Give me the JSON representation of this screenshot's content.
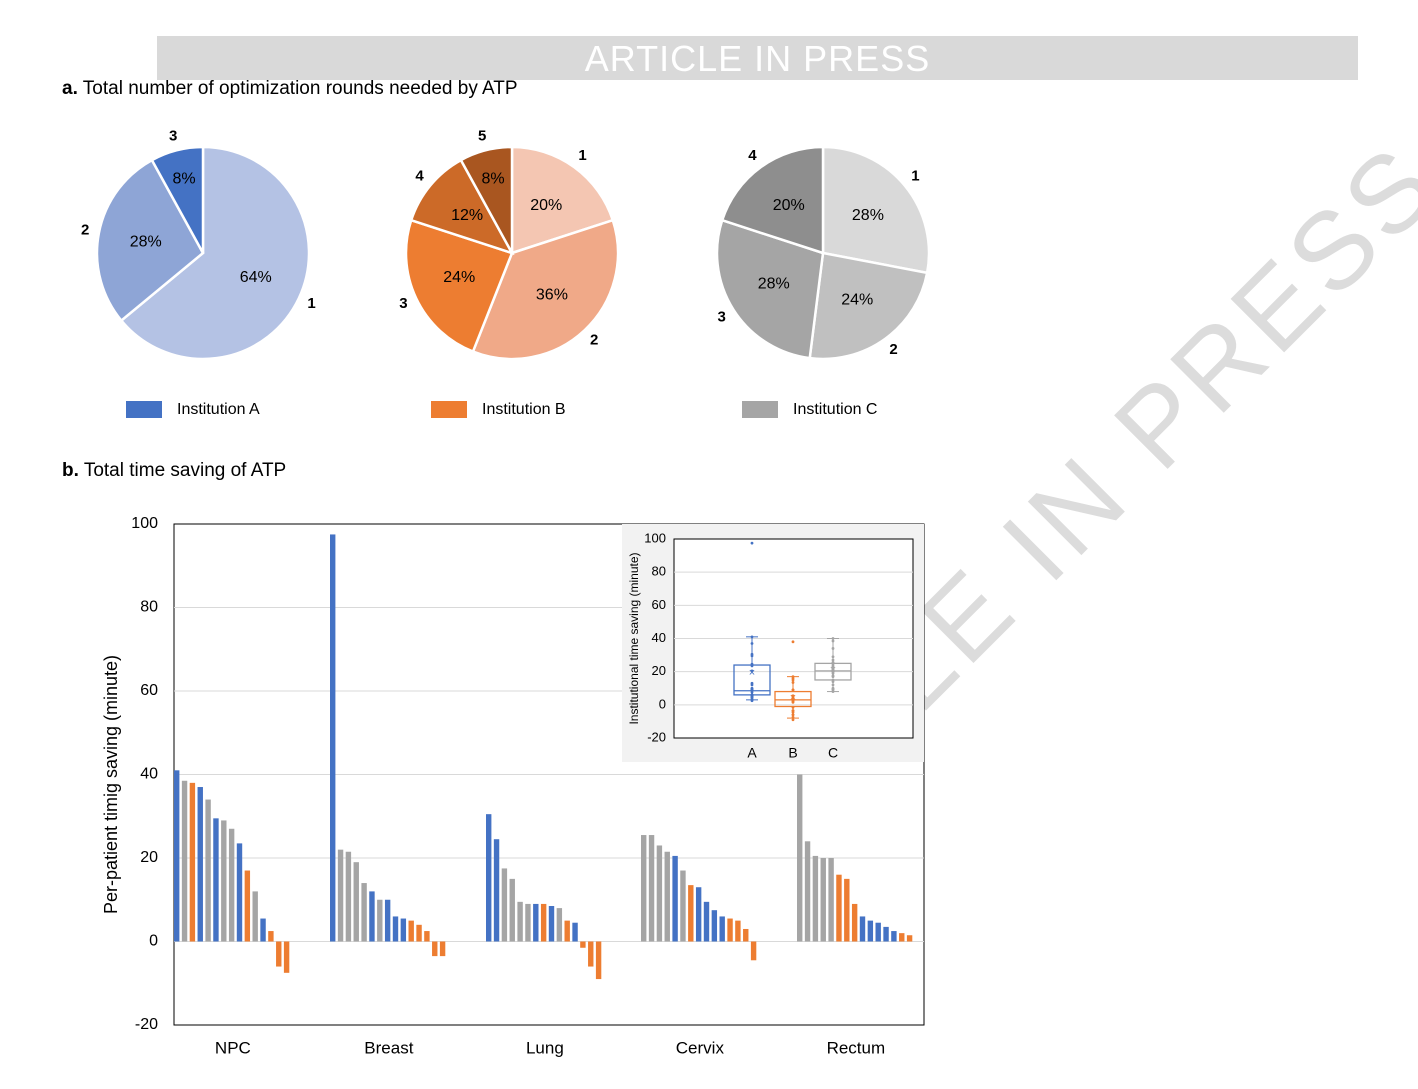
{
  "banner": "ARTICLE IN PRESS",
  "watermark": "ARTICLE IN PRESS",
  "panel_a": {
    "letter": "a.",
    "title": "Total number of optimization rounds needed by ATP"
  },
  "panel_b": {
    "letter": "b.",
    "title": "Total time saving of ATP"
  },
  "colors": {
    "institution_a": "#4472c4",
    "institution_b": "#ed7d31",
    "institution_c": "#a5a5a5",
    "grid": "#d9d9d9"
  },
  "chart_data": [
    {
      "type": "pie",
      "legend": "Institution A",
      "slices": [
        {
          "label": "1",
          "value": 64,
          "text": "64%",
          "color": "#b4c2e4"
        },
        {
          "label": "2",
          "value": 28,
          "text": "28%",
          "color": "#8ea5d6"
        },
        {
          "label": "3",
          "value": 8,
          "text": "8%",
          "color": "#4472c4"
        }
      ]
    },
    {
      "type": "pie",
      "legend": "Institution B",
      "slices": [
        {
          "label": "1",
          "value": 20,
          "text": "20%",
          "color": "#f4c6b2"
        },
        {
          "label": "2",
          "value": 36,
          "text": "36%",
          "color": "#f0a988"
        },
        {
          "label": "3",
          "value": 24,
          "text": "24%",
          "color": "#ed7d31"
        },
        {
          "label": "4",
          "value": 12,
          "text": "12%",
          "color": "#cc6a28"
        },
        {
          "label": "5",
          "value": 8,
          "text": "8%",
          "color": "#a95620"
        }
      ]
    },
    {
      "type": "pie",
      "legend": "Institution C",
      "slices": [
        {
          "label": "1",
          "value": 28,
          "text": "28%",
          "color": "#d9d9d9"
        },
        {
          "label": "2",
          "value": 24,
          "text": "24%",
          "color": "#c0c0c0"
        },
        {
          "label": "3",
          "value": 28,
          "text": "28%",
          "color": "#a5a5a5"
        },
        {
          "label": "4",
          "value": 20,
          "text": "20%",
          "color": "#8e8e8e"
        }
      ]
    },
    {
      "type": "bar",
      "ylabel": "Per-patient timig saving (minute)",
      "ylim": [
        -20,
        100
      ],
      "yticks": [
        -20,
        0,
        20,
        40,
        60,
        80,
        100
      ],
      "grid": true,
      "groups": [
        {
          "name": "NPC",
          "bars": [
            {
              "inst": "A",
              "value": 41
            },
            {
              "inst": "C",
              "value": 38.5
            },
            {
              "inst": "B",
              "value": 38
            },
            {
              "inst": "A",
              "value": 37
            },
            {
              "inst": "C",
              "value": 34
            },
            {
              "inst": "A",
              "value": 29.5
            },
            {
              "inst": "C",
              "value": 29
            },
            {
              "inst": "C",
              "value": 27
            },
            {
              "inst": "A",
              "value": 23.5
            },
            {
              "inst": "B",
              "value": 17
            },
            {
              "inst": "C",
              "value": 12
            },
            {
              "inst": "A",
              "value": 5.5
            },
            {
              "inst": "B",
              "value": 2.5
            },
            {
              "inst": "B",
              "value": -6
            },
            {
              "inst": "B",
              "value": -7.5
            }
          ]
        },
        {
          "name": "Breast",
          "bars": [
            {
              "inst": "A",
              "value": 97.5
            },
            {
              "inst": "C",
              "value": 22
            },
            {
              "inst": "C",
              "value": 21.5
            },
            {
              "inst": "C",
              "value": 19
            },
            {
              "inst": "C",
              "value": 14
            },
            {
              "inst": "A",
              "value": 12
            },
            {
              "inst": "C",
              "value": 10
            },
            {
              "inst": "A",
              "value": 10
            },
            {
              "inst": "A",
              "value": 6
            },
            {
              "inst": "A",
              "value": 5.5
            },
            {
              "inst": "B",
              "value": 5
            },
            {
              "inst": "B",
              "value": 4
            },
            {
              "inst": "B",
              "value": 2.5
            },
            {
              "inst": "B",
              "value": -3.5
            },
            {
              "inst": "B",
              "value": -3.5
            }
          ]
        },
        {
          "name": "Lung",
          "bars": [
            {
              "inst": "A",
              "value": 30.5
            },
            {
              "inst": "A",
              "value": 24.5
            },
            {
              "inst": "C",
              "value": 17.5
            },
            {
              "inst": "C",
              "value": 15
            },
            {
              "inst": "C",
              "value": 9.5
            },
            {
              "inst": "C",
              "value": 9
            },
            {
              "inst": "A",
              "value": 9
            },
            {
              "inst": "B",
              "value": 9
            },
            {
              "inst": "A",
              "value": 8.5
            },
            {
              "inst": "C",
              "value": 8
            },
            {
              "inst": "B",
              "value": 5
            },
            {
              "inst": "A",
              "value": 4.5
            },
            {
              "inst": "B",
              "value": -1.5
            },
            {
              "inst": "B",
              "value": -6
            },
            {
              "inst": "B",
              "value": -9
            }
          ]
        },
        {
          "name": "Cervix",
          "bars": [
            {
              "inst": "C",
              "value": 25.5
            },
            {
              "inst": "C",
              "value": 25.5
            },
            {
              "inst": "C",
              "value": 23
            },
            {
              "inst": "C",
              "value": 21.5
            },
            {
              "inst": "A",
              "value": 20.5
            },
            {
              "inst": "C",
              "value": 17
            },
            {
              "inst": "B",
              "value": 13.5
            },
            {
              "inst": "A",
              "value": 13
            },
            {
              "inst": "A",
              "value": 9.5
            },
            {
              "inst": "A",
              "value": 7.5
            },
            {
              "inst": "A",
              "value": 6
            },
            {
              "inst": "B",
              "value": 5.5
            },
            {
              "inst": "B",
              "value": 5
            },
            {
              "inst": "B",
              "value": 3
            },
            {
              "inst": "B",
              "value": -4.5
            }
          ]
        },
        {
          "name": "Rectum",
          "bars": [
            {
              "inst": "C",
              "value": 40
            },
            {
              "inst": "C",
              "value": 24
            },
            {
              "inst": "C",
              "value": 20.5
            },
            {
              "inst": "C",
              "value": 20
            },
            {
              "inst": "C",
              "value": 20
            },
            {
              "inst": "B",
              "value": 16
            },
            {
              "inst": "B",
              "value": 15
            },
            {
              "inst": "B",
              "value": 9
            },
            {
              "inst": "A",
              "value": 6
            },
            {
              "inst": "A",
              "value": 5
            },
            {
              "inst": "A",
              "value": 4.5
            },
            {
              "inst": "A",
              "value": 3.5
            },
            {
              "inst": "A",
              "value": 2.5
            },
            {
              "inst": "B",
              "value": 2
            },
            {
              "inst": "B",
              "value": 1.5
            }
          ]
        }
      ],
      "inset": {
        "type": "box",
        "ylabel": "Institutional time saving (minute)",
        "ylim": [
          -20,
          100
        ],
        "yticks": [
          -20,
          0,
          20,
          40,
          60,
          80,
          100
        ],
        "boxes": [
          {
            "label": "A",
            "inst": "A",
            "min": 3,
            "q1": 6,
            "median": 8.5,
            "q3": 24,
            "max": 41,
            "mean": 19,
            "points": [
              97.5,
              41,
              37,
              30.5,
              29.5,
              24.5,
              23.5,
              20.5,
              13,
              12,
              10,
              9.5,
              9,
              8.5,
              7.5,
              6,
              6,
              5.5,
              5.5,
              5,
              4.5,
              4.5,
              3.5,
              2.5
            ]
          },
          {
            "label": "B",
            "inst": "B",
            "min": -8,
            "q1": -1,
            "median": 3,
            "q3": 8,
            "max": 17,
            "mean": 4,
            "points": [
              38,
              17,
              16,
              15,
              13.5,
              9,
              9,
              5.5,
              5,
              5,
              4,
              3,
              2.5,
              2,
              1.5,
              -1.5,
              -3.5,
              -3.5,
              -4.5,
              -6,
              -6,
              -7.5,
              -9
            ]
          },
          {
            "label": "C",
            "inst": "C",
            "min": 8,
            "q1": 15,
            "median": 20.5,
            "q3": 25,
            "max": 40,
            "mean": 21,
            "points": [
              40,
              38.5,
              34,
              29,
              27,
              25.5,
              25.5,
              24,
              23,
              22,
              21.5,
              21.5,
              20.5,
              20,
              20,
              19,
              17.5,
              17,
              15,
              14,
              12,
              10,
              9.5,
              9,
              8
            ]
          }
        ]
      }
    }
  ]
}
